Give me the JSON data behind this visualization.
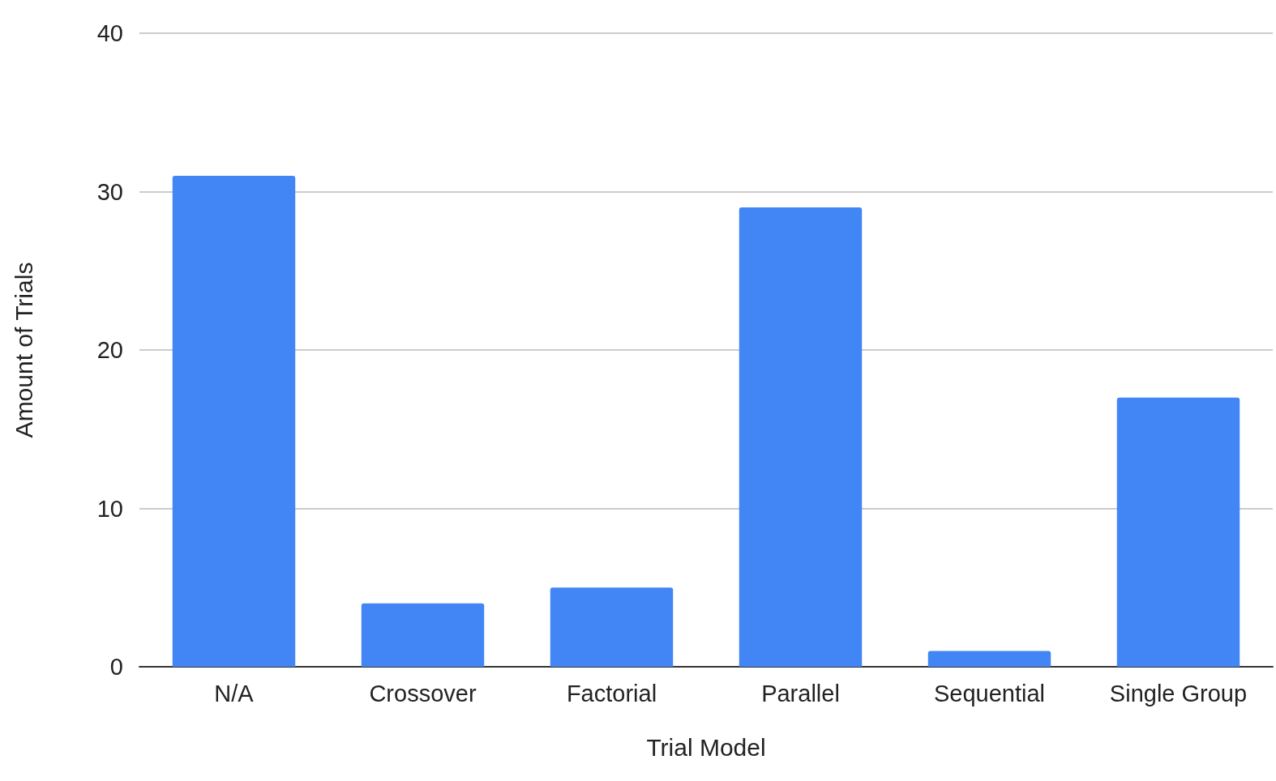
{
  "chart_data": {
    "type": "bar",
    "xlabel": "Trial Model",
    "ylabel": "Amount of Trials",
    "categories": [
      "N/A",
      "Crossover",
      "Factorial",
      "Parallel",
      "Sequential",
      "Single Group"
    ],
    "values": [
      31,
      4,
      5,
      29,
      1,
      17
    ],
    "color": "#4285f4",
    "ylim": [
      0,
      40
    ],
    "yticks": [
      0,
      10,
      20,
      30,
      40
    ],
    "grid": "y"
  }
}
